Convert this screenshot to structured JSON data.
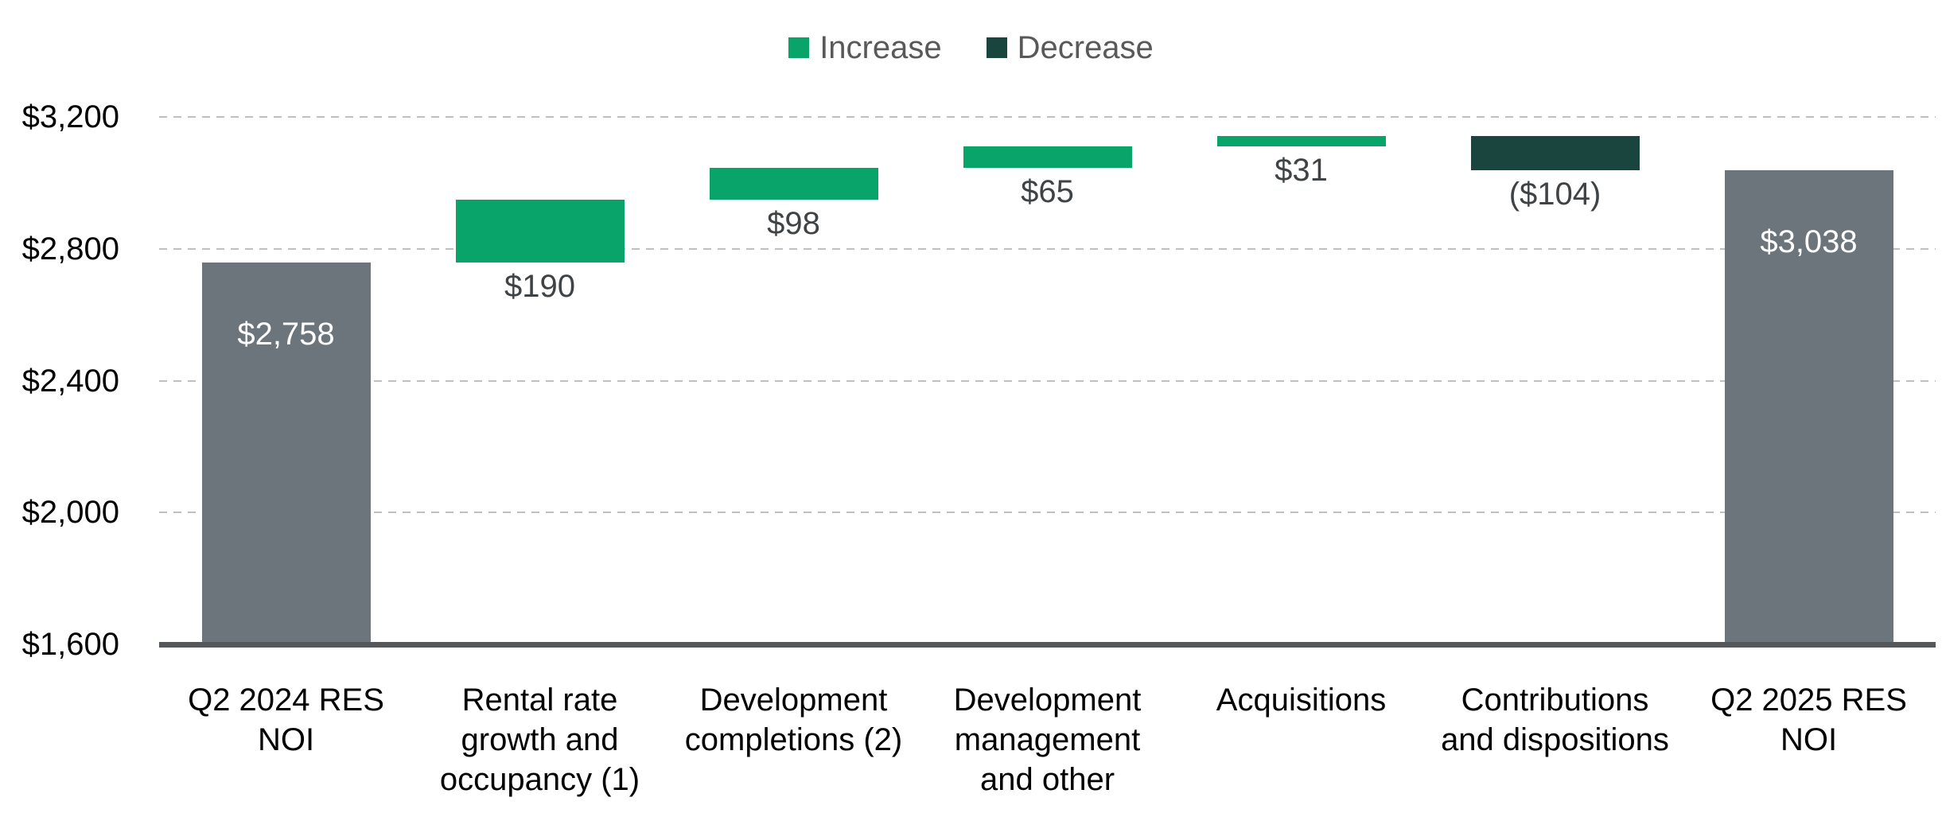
{
  "chart_data": {
    "type": "waterfall",
    "title": "",
    "legend": [
      {
        "label": "Increase",
        "color": "#09a469"
      },
      {
        "label": "Decrease",
        "color": "#1a443e"
      }
    ],
    "colors": {
      "total": "#6c757c",
      "increase": "#09a469",
      "decrease": "#1a443e",
      "gridline": "#bfbfbf",
      "axis_line": "#54575c",
      "inside_label": "#ffffff",
      "outside_label": "#3f4345",
      "legend_text": "#595959"
    },
    "y_axis": {
      "min": 1600,
      "max": 3200,
      "ticks": [
        {
          "value": 1600,
          "label": "$1,600"
        },
        {
          "value": 2000,
          "label": "$2,000"
        },
        {
          "value": 2400,
          "label": "$2,400"
        },
        {
          "value": 2800,
          "label": "$2,800"
        },
        {
          "value": 3200,
          "label": "$3,200"
        }
      ],
      "gridlines": "dashed"
    },
    "bars": [
      {
        "category": "Q2 2024 RES\nNOI",
        "kind": "total",
        "value": 2758,
        "label": "$2,758",
        "start": 1600,
        "end": 2758
      },
      {
        "category": "Rental rate\ngrowth and\noccupancy (1)",
        "kind": "increase",
        "value": 190,
        "label": "$190",
        "start": 2758,
        "end": 2948
      },
      {
        "category": "Development\ncompletions (2)",
        "kind": "increase",
        "value": 98,
        "label": "$98",
        "start": 2948,
        "end": 3046
      },
      {
        "category": "Development\nmanagement\nand other",
        "kind": "increase",
        "value": 65,
        "label": "$65",
        "start": 3046,
        "end": 3111
      },
      {
        "category": "Acquisitions",
        "kind": "increase",
        "value": 31,
        "label": "$31",
        "start": 3111,
        "end": 3142
      },
      {
        "category": "Contributions\nand dispositions",
        "kind": "decrease",
        "value": -104,
        "label": "($104)",
        "start": 3142,
        "end": 3038
      },
      {
        "category": "Q2 2025 RES\nNOI",
        "kind": "total",
        "value": 3038,
        "label": "$3,038",
        "start": 1600,
        "end": 3038
      }
    ]
  }
}
